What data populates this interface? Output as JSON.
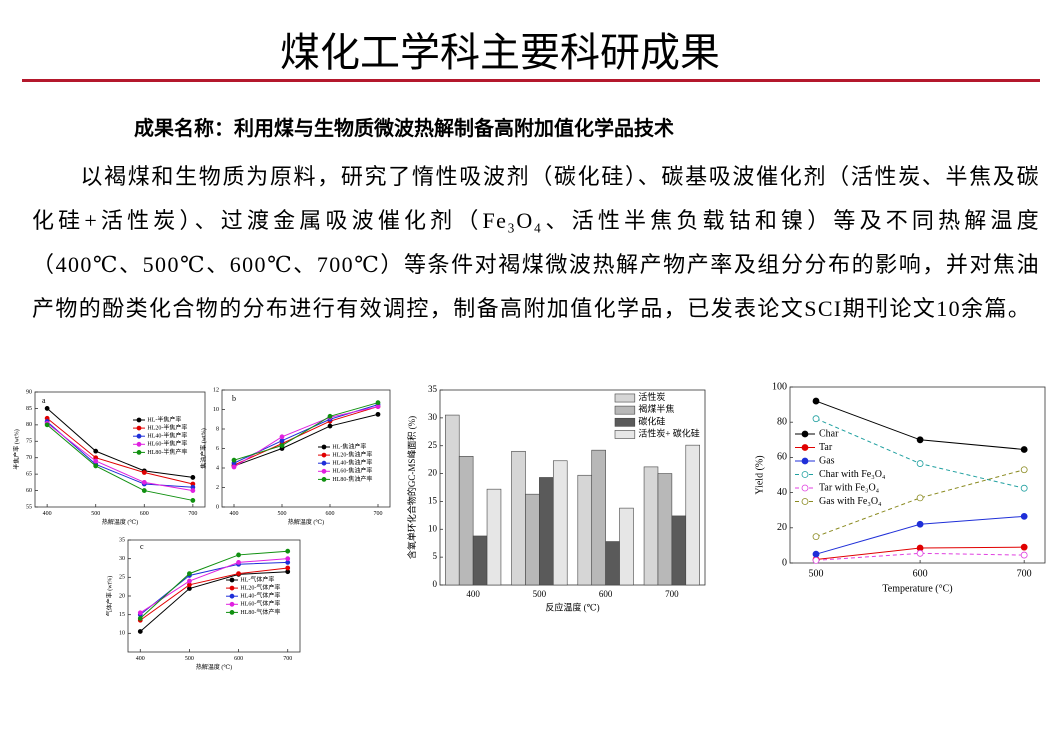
{
  "header": {
    "title": "煤化工学科主要科研成果"
  },
  "subtitle": "成果名称：利用煤与生物质微波热解制备高附加值化学品技术",
  "paragraph": "以褐煤和生物质为原料，研究了惰性吸波剂（碳化硅）、碳基吸波催化剂（活性炭、半焦及碳化硅+活性炭）、过渡金属吸波催化剂（Fe₃O₄、活性半焦负载钴和镍）等及不同热解温度（400℃、500℃、600℃、700℃）等条件对褐煤微波热解产物产率及组分分布的影响，并对焦油产物的酚类化合物的分布进行有效调控，制备高附加值化学品，已发表论文SCI期刊论文10余篇。",
  "chart_data": [
    {
      "type": "line",
      "panel": "a",
      "xlabel": "热解温度 (℃)",
      "ylabel": "半焦产率 (wt%)",
      "x": [
        400,
        500,
        600,
        700
      ],
      "xlim": [
        375,
        725
      ],
      "xticks": [
        400,
        500,
        600,
        700
      ],
      "ylim": [
        55,
        90
      ],
      "yticks": [
        55,
        60,
        65,
        70,
        75,
        80,
        85,
        90
      ],
      "series": [
        {
          "name": "HL-半焦产率",
          "color": "#000000",
          "values": [
            85,
            72,
            66,
            64
          ]
        },
        {
          "name": "HL20-半焦产率",
          "color": "#e00000",
          "values": [
            82,
            70,
            65.5,
            62
          ]
        },
        {
          "name": "HL40-半焦产率",
          "color": "#1f2fd8",
          "values": [
            81,
            68,
            62,
            61
          ]
        },
        {
          "name": "HL60-半焦产率",
          "color": "#e020e0",
          "values": [
            80.5,
            69,
            62.5,
            60
          ]
        },
        {
          "name": "HL80-半焦产率",
          "color": "#109010",
          "values": [
            80,
            67.5,
            60,
            57
          ]
        }
      ]
    },
    {
      "type": "line",
      "panel": "b",
      "xlabel": "热解温度 (℃)",
      "ylabel": "焦油产率 (wt%)",
      "x": [
        400,
        500,
        600,
        700
      ],
      "xlim": [
        375,
        725
      ],
      "xticks": [
        400,
        500,
        600,
        700
      ],
      "ylim": [
        0,
        12
      ],
      "yticks": [
        0,
        2,
        4,
        6,
        8,
        10,
        12
      ],
      "series": [
        {
          "name": "HL-焦油产率",
          "color": "#000000",
          "values": [
            4.2,
            6.0,
            8.3,
            9.5
          ]
        },
        {
          "name": "HL20-焦油产率",
          "color": "#e00000",
          "values": [
            4.3,
            6.5,
            8.8,
            10.3
          ]
        },
        {
          "name": "HL40-焦油产率",
          "color": "#1f2fd8",
          "values": [
            4.5,
            6.8,
            9.0,
            10.5
          ]
        },
        {
          "name": "HL60-焦油产率",
          "color": "#e020e0",
          "values": [
            4.1,
            7.2,
            9.2,
            10.3
          ]
        },
        {
          "name": "HL80-焦油产率",
          "color": "#109010",
          "values": [
            4.8,
            6.3,
            9.3,
            10.7
          ]
        }
      ]
    },
    {
      "type": "line",
      "panel": "c",
      "xlabel": "热解温度 (℃)",
      "ylabel": "气体产率 (wt%)",
      "x": [
        400,
        500,
        600,
        700
      ],
      "xlim": [
        375,
        725
      ],
      "xticks": [
        400,
        500,
        600,
        700
      ],
      "ylim": [
        5,
        35
      ],
      "yticks": [
        10,
        15,
        20,
        25,
        30,
        35
      ],
      "series": [
        {
          "name": "HL-气体产率",
          "color": "#000000",
          "values": [
            10.5,
            22,
            25.8,
            26.5
          ]
        },
        {
          "name": "HL20-气体产率",
          "color": "#e00000",
          "values": [
            13.5,
            23,
            26,
            27.5
          ]
        },
        {
          "name": "HL40-气体产率",
          "color": "#1f2fd8",
          "values": [
            15,
            25.5,
            28.5,
            29
          ]
        },
        {
          "name": "HL60-气体产率",
          "color": "#e020e0",
          "values": [
            15.5,
            24,
            29,
            30
          ]
        },
        {
          "name": "HL80-气体产率",
          "color": "#109010",
          "values": [
            14,
            26,
            31,
            32
          ]
        }
      ]
    },
    {
      "type": "bar",
      "xlabel": "反应温度 (℃)",
      "ylabel": "含氧单环化合物的GC-MS峰面积 (%)",
      "categories": [
        "400",
        "500",
        "600",
        "700"
      ],
      "ylim": [
        0,
        35
      ],
      "yticks": [
        0,
        5,
        10,
        15,
        20,
        25,
        30,
        35
      ],
      "series": [
        {
          "name": "活性炭",
          "color": "#d6d6d6",
          "values": [
            30.5,
            24,
            19.7,
            21.2
          ]
        },
        {
          "name": "褐煤半焦",
          "color": "#b8b8b8",
          "values": [
            23.1,
            16.3,
            24.2,
            20
          ]
        },
        {
          "name": "碳化硅",
          "color": "#5a5a5a",
          "values": [
            8.8,
            19.3,
            7.8,
            12.4
          ]
        },
        {
          "name": "活性炭+ 碳化硅",
          "color": "#e6e6e6",
          "values": [
            17.2,
            22.3,
            13.8,
            25.1
          ]
        }
      ]
    },
    {
      "type": "line",
      "xlabel": "Temperature (°C)",
      "ylabel": "Yield (%)",
      "x": [
        500,
        600,
        700
      ],
      "xlim": [
        475,
        720
      ],
      "xticks": [
        500,
        600,
        700
      ],
      "ylim": [
        0,
        100
      ],
      "yticks": [
        0,
        20,
        40,
        60,
        80,
        100
      ],
      "series": [
        {
          "name": "Char",
          "color": "#000000",
          "values": [
            92,
            70,
            64.5
          ]
        },
        {
          "name": "Tar",
          "color": "#e00000",
          "values": [
            2,
            8.5,
            9
          ]
        },
        {
          "name": "Gas",
          "color": "#1f2fd8",
          "values": [
            5,
            22,
            26.5
          ]
        },
        {
          "name": "Char with Fe₃O₄",
          "color": "#20a0a0",
          "dashed": true,
          "values": [
            82,
            56.5,
            42.5
          ]
        },
        {
          "name": "Tar with Fe₃O₄",
          "color": "#e040e0",
          "dashed": true,
          "values": [
            1.5,
            5.5,
            4.5
          ]
        },
        {
          "name": "Gas with Fe₃O₄",
          "color": "#8a8a20",
          "dashed": true,
          "values": [
            15,
            37,
            53
          ]
        }
      ]
    }
  ]
}
